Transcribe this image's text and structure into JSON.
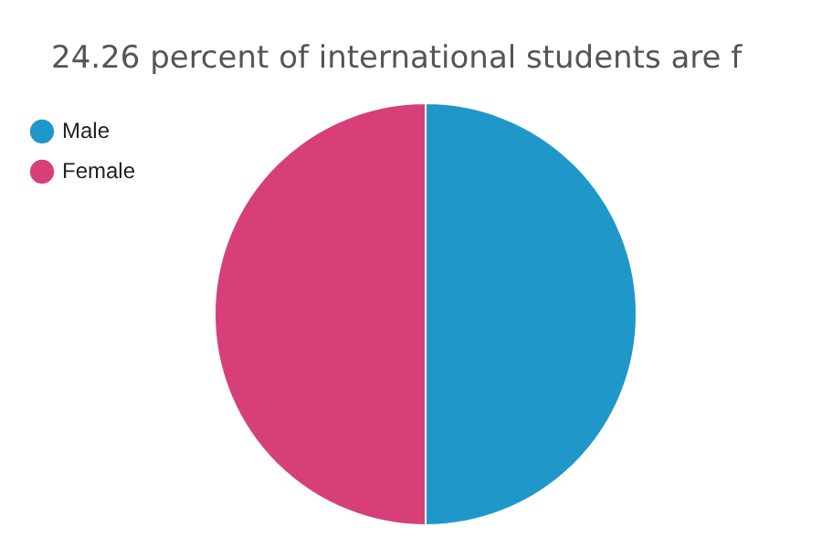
{
  "chart_data": {
    "type": "pie",
    "title": "24.26 percent of international students are f",
    "categories": [
      "Male",
      "Female"
    ],
    "values": [
      50,
      50
    ],
    "colors": [
      "#1f98c9",
      "#d63f77"
    ],
    "legend": "top left"
  }
}
